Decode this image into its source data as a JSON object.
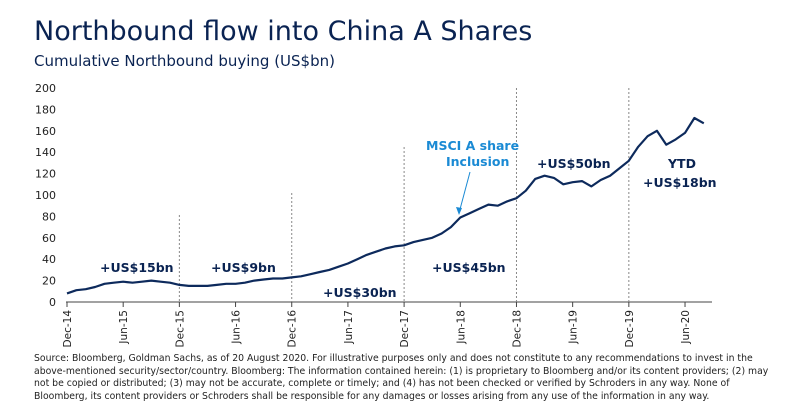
{
  "chart_data": {
    "type": "line",
    "title": "Northbound flow into China A Shares",
    "subtitle": "Cumulative Northbound buying (US$bn)",
    "x": [
      "Dec-14",
      "Jan-15",
      "Feb-15",
      "Mar-15",
      "Apr-15",
      "May-15",
      "Jun-15",
      "Jul-15",
      "Aug-15",
      "Sep-15",
      "Oct-15",
      "Nov-15",
      "Dec-15",
      "Jan-16",
      "Feb-16",
      "Mar-16",
      "Apr-16",
      "May-16",
      "Jun-16",
      "Jul-16",
      "Aug-16",
      "Sep-16",
      "Oct-16",
      "Nov-16",
      "Dec-16",
      "Jan-17",
      "Feb-17",
      "Mar-17",
      "Apr-17",
      "May-17",
      "Jun-17",
      "Jul-17",
      "Aug-17",
      "Sep-17",
      "Oct-17",
      "Nov-17",
      "Dec-17",
      "Jan-18",
      "Feb-18",
      "Mar-18",
      "Apr-18",
      "May-18",
      "Jun-18",
      "Jul-18",
      "Aug-18",
      "Sep-18",
      "Oct-18",
      "Nov-18",
      "Dec-18",
      "Jan-19",
      "Feb-19",
      "Mar-19",
      "Apr-19",
      "May-19",
      "Jun-19",
      "Jul-19",
      "Aug-19",
      "Sep-19",
      "Oct-19",
      "Nov-19",
      "Dec-19",
      "Jan-20",
      "Feb-20",
      "Mar-20",
      "Apr-20",
      "May-20",
      "Jun-20",
      "Jul-20",
      "Aug-20"
    ],
    "series": [
      {
        "name": "Cumulative Northbound buying",
        "color": "#0d2a5c",
        "values": [
          8,
          11,
          12,
          14,
          17,
          18,
          19,
          18,
          19,
          20,
          19,
          18,
          16,
          15,
          15,
          15,
          16,
          17,
          17,
          18,
          20,
          21,
          22,
          22,
          23,
          24,
          26,
          28,
          30,
          33,
          36,
          40,
          44,
          47,
          50,
          52,
          53,
          56,
          58,
          60,
          64,
          70,
          79,
          83,
          87,
          91,
          90,
          94,
          97,
          104,
          115,
          118,
          116,
          110,
          112,
          113,
          108,
          114,
          118,
          125,
          132,
          145,
          155,
          160,
          147,
          152,
          158,
          172,
          167
        ]
      }
    ],
    "ylim": [
      0,
      200
    ],
    "yticks": [
      0,
      20,
      40,
      60,
      80,
      100,
      120,
      140,
      160,
      180,
      200
    ],
    "xticks": [
      "Dec-14",
      "Jun-15",
      "Dec-15",
      "Jun-16",
      "Dec-16",
      "Jun-17",
      "Dec-17",
      "Jun-18",
      "Dec-18",
      "Jun-19",
      "Dec-19",
      "Jun-20"
    ],
    "annotations": [
      "+US$15bn",
      "+US$9bn",
      "+US$30bn",
      "+US$45bn",
      "+US$50bn",
      "YTD",
      "+US$18bn",
      "MSCI A share",
      "Inclusion"
    ],
    "source": "Source: Bloomberg, Goldman Sachs, as of 20 August 2020. For illustrative purposes only and does not constitute to any recommendations to invest in the above-mentioned security/sector/country. Bloomberg: The information contained herein: (1) is proprietary to Bloomberg and/or its content providers; (2) may not be copied or distributed; (3) may not be accurate, complete or timely; and (4) has not been checked or verified by Schroders in any way. None of Bloomberg, its content providers or Schroders shall be responsible for any damages or losses arising from any use of the information in any way."
  }
}
